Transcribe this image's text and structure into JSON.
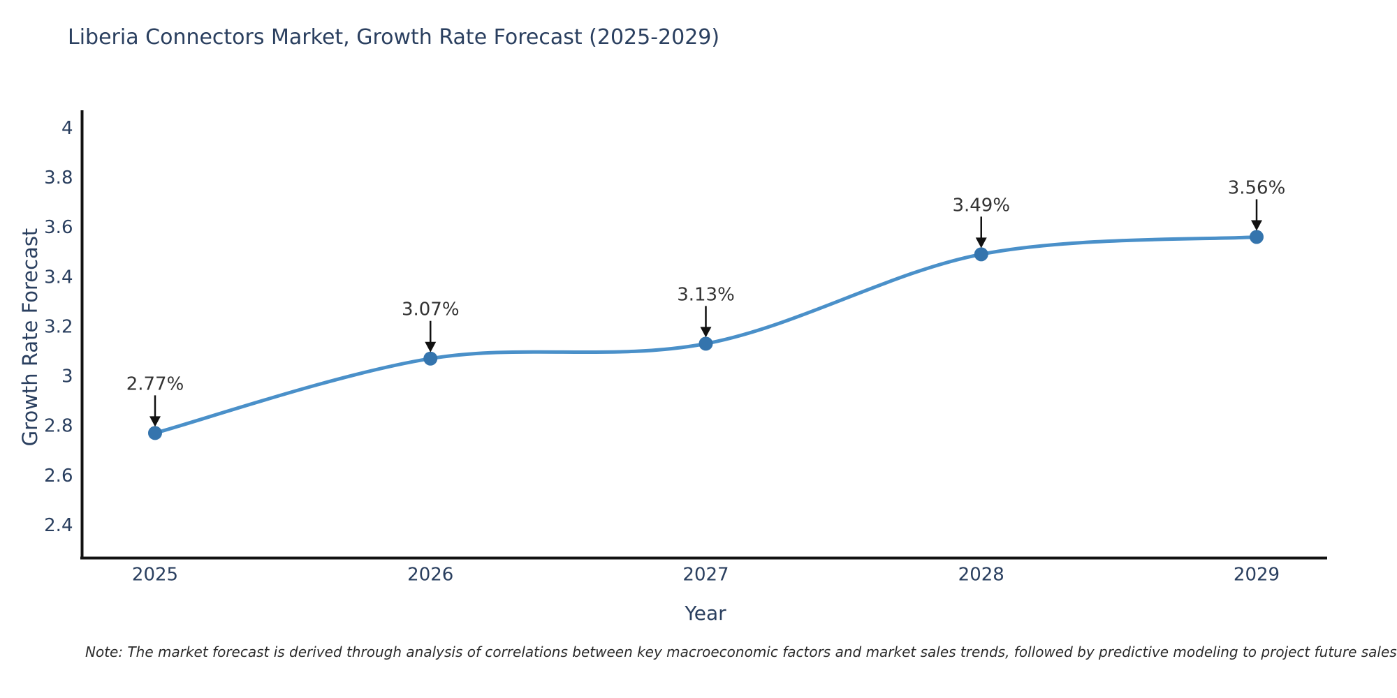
{
  "title": "Liberia Connectors Market, Growth Rate Forecast (2025-2029)",
  "note": "Note: The market forecast is derived through analysis of correlations between key macroeconomic factors and market sales trends, followed by predictive modeling to project future sales",
  "chart_data": {
    "type": "line",
    "title": "Liberia Connectors Market, Growth Rate Forecast (2025-2029)",
    "xlabel": "Year",
    "ylabel": "Growth Rate Forecast",
    "categories": [
      "2025",
      "2026",
      "2027",
      "2028",
      "2029"
    ],
    "values": [
      2.77,
      3.07,
      3.13,
      3.49,
      3.56
    ],
    "point_labels": [
      "2.77%",
      "3.07%",
      "3.13%",
      "3.49%",
      "3.56%"
    ],
    "yticks": [
      2.4,
      2.6,
      2.8,
      3,
      3.2,
      3.4,
      3.6,
      3.8,
      4
    ],
    "ylim": [
      2.26,
      4.07
    ],
    "line_shape": "spline",
    "grid": false,
    "legend": "none",
    "colors": {
      "line": "#4a90c9",
      "marker": "#3474ad",
      "axis": "#111111",
      "tick_text": "#2a3f5f",
      "annotation_text": "#333333",
      "annotation_arrow": "#111111"
    }
  }
}
